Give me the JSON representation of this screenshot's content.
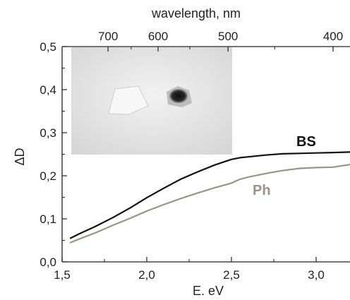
{
  "chart_data": {
    "type": "line",
    "title": "",
    "xlabel": "E. eV",
    "ylabel": "ΔD",
    "top_xlabel": "wavelength, nm",
    "xlim": [
      1.5,
      3.2
    ],
    "ylim": [
      0.0,
      0.5
    ],
    "grid": false,
    "legend": "inline labels",
    "x_ticks": [
      {
        "value": 1.5,
        "label": "1,5"
      },
      {
        "value": 2.0,
        "label": "2,0"
      },
      {
        "value": 2.5,
        "label": "2,5"
      },
      {
        "value": 3.0,
        "label": "3,0"
      }
    ],
    "y_ticks": [
      {
        "value": 0.0,
        "label": "0,0"
      },
      {
        "value": 0.1,
        "label": "0,1"
      },
      {
        "value": 0.2,
        "label": "0,2"
      },
      {
        "value": 0.3,
        "label": "0,3"
      },
      {
        "value": 0.4,
        "label": "0,4"
      },
      {
        "value": 0.5,
        "label": "0,5"
      }
    ],
    "top_ticks": [
      {
        "value": 700,
        "label": "700"
      },
      {
        "value": 600,
        "label": "600"
      },
      {
        "value": 500,
        "label": "500"
      },
      {
        "value": 400,
        "label": "400"
      }
    ],
    "series": [
      {
        "name": "BS",
        "color": "#111111",
        "x": [
          1.55,
          1.6,
          1.7,
          1.8,
          1.9,
          2.0,
          2.1,
          2.2,
          2.3,
          2.4,
          2.5,
          2.55,
          2.6,
          2.7,
          2.8,
          2.9,
          3.0,
          3.1,
          3.2
        ],
        "y": [
          0.055,
          0.065,
          0.083,
          0.103,
          0.125,
          0.149,
          0.171,
          0.192,
          0.209,
          0.225,
          0.238,
          0.242,
          0.244,
          0.248,
          0.251,
          0.252,
          0.253,
          0.254,
          0.255
        ]
      },
      {
        "name": "Ph",
        "color": "#9a928c",
        "x": [
          1.55,
          1.6,
          1.7,
          1.8,
          1.9,
          2.0,
          2.1,
          2.2,
          2.3,
          2.4,
          2.5,
          2.55,
          2.6,
          2.7,
          2.8,
          2.9,
          3.0,
          3.1,
          3.2
        ],
        "y": [
          0.045,
          0.053,
          0.068,
          0.085,
          0.101,
          0.118,
          0.133,
          0.147,
          0.16,
          0.172,
          0.183,
          0.192,
          0.197,
          0.205,
          0.212,
          0.217,
          0.219,
          0.22,
          0.226
        ]
      }
    ],
    "inset": {
      "description_visible": false
    }
  },
  "colors": {
    "axis": "#222222",
    "photo_bg": "#e6e6e6",
    "dark_spot": "#1a1a1a"
  }
}
